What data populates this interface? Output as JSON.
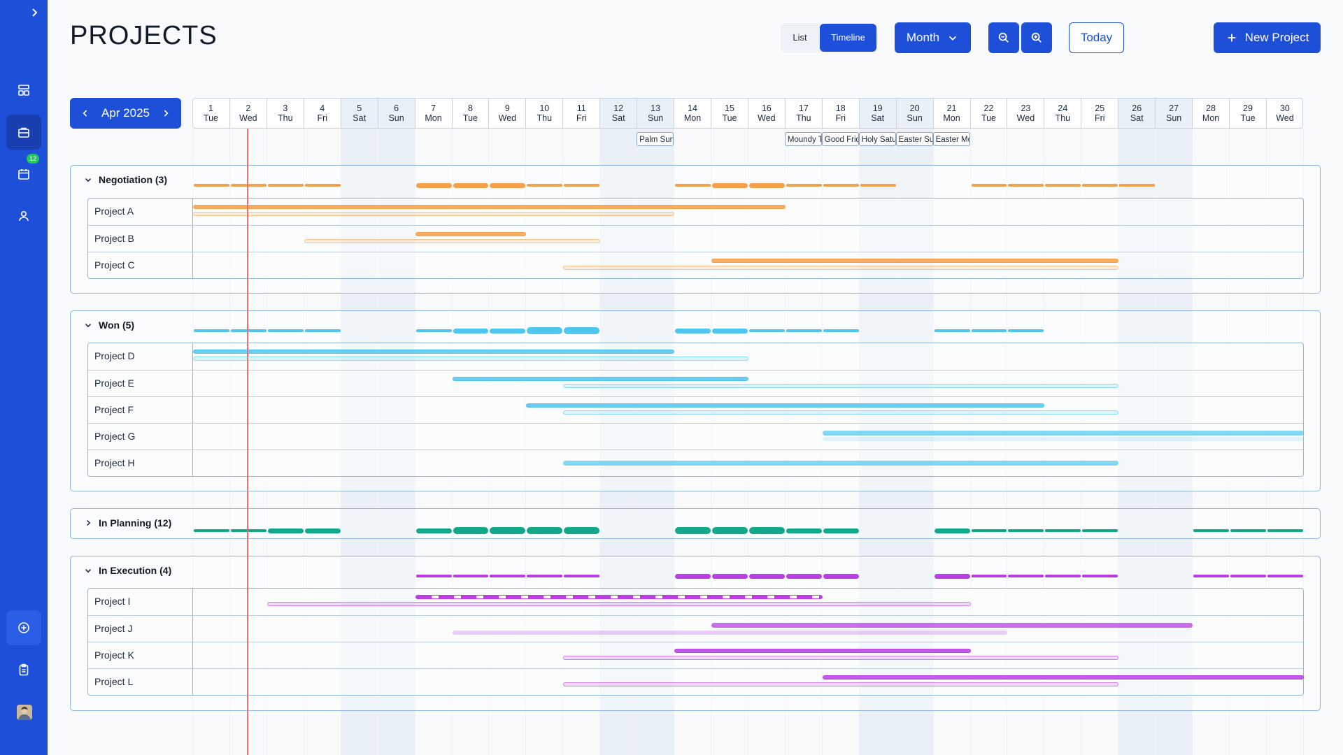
{
  "page_title": "PROJECTS",
  "view_toggle": {
    "list": "List",
    "timeline": "Timeline"
  },
  "period_select": "Month",
  "today_label": "Today",
  "new_project_label": "New Project",
  "month_nav": {
    "label": "Apr 2025"
  },
  "sidebar": {
    "calendar_badge": "12"
  },
  "days": [
    {
      "d": "1",
      "w": "Tue"
    },
    {
      "d": "2",
      "w": "Wed"
    },
    {
      "d": "3",
      "w": "Thu"
    },
    {
      "d": "4",
      "w": "Fri"
    },
    {
      "d": "5",
      "w": "Sat"
    },
    {
      "d": "6",
      "w": "Sun"
    },
    {
      "d": "7",
      "w": "Mon"
    },
    {
      "d": "8",
      "w": "Tue"
    },
    {
      "d": "9",
      "w": "Wed"
    },
    {
      "d": "10",
      "w": "Thu"
    },
    {
      "d": "11",
      "w": "Fri"
    },
    {
      "d": "12",
      "w": "Sat"
    },
    {
      "d": "13",
      "w": "Sun"
    },
    {
      "d": "14",
      "w": "Mon"
    },
    {
      "d": "15",
      "w": "Tue"
    },
    {
      "d": "16",
      "w": "Wed"
    },
    {
      "d": "17",
      "w": "Thu"
    },
    {
      "d": "18",
      "w": "Fri"
    },
    {
      "d": "19",
      "w": "Sat"
    },
    {
      "d": "20",
      "w": "Sun"
    },
    {
      "d": "21",
      "w": "Mon"
    },
    {
      "d": "22",
      "w": "Tue"
    },
    {
      "d": "23",
      "w": "Wed"
    },
    {
      "d": "24",
      "w": "Thu"
    },
    {
      "d": "25",
      "w": "Fri"
    },
    {
      "d": "26",
      "w": "Sat"
    },
    {
      "d": "27",
      "w": "Sun"
    },
    {
      "d": "28",
      "w": "Mon"
    },
    {
      "d": "29",
      "w": "Tue"
    },
    {
      "d": "30",
      "w": "Wed"
    }
  ],
  "weekend_days": [
    5,
    6,
    12,
    13,
    19,
    20,
    26,
    27
  ],
  "today_day": 2,
  "holidays": [
    {
      "day": 13,
      "label": "Palm Sunday"
    },
    {
      "day": 17,
      "label": "Moundy Thursday"
    },
    {
      "day": 18,
      "label": "Good Friday"
    },
    {
      "day": 19,
      "label": "Holy Saturday"
    },
    {
      "day": 20,
      "label": "Easter Sunday"
    },
    {
      "day": 21,
      "label": "Easter Monday"
    }
  ],
  "colors": {
    "negotiation": "#f5a04a",
    "won": "#4fc6ee",
    "planning": "#13a88a",
    "execution": "#b93ee6"
  },
  "groups": [
    {
      "name": "Negotiation (3)",
      "key": "negotiation",
      "expanded": true,
      "load": [
        1,
        1,
        1,
        1,
        0,
        0,
        2,
        2,
        2,
        1,
        1,
        0,
        0,
        1,
        2,
        2,
        1,
        1,
        1,
        0,
        0,
        1,
        1,
        1,
        1,
        1,
        0,
        0,
        0,
        0
      ],
      "projects": [
        {
          "name": "Project A",
          "main": [
            1,
            16
          ],
          "sub": [
            1,
            13
          ]
        },
        {
          "name": "Project B",
          "main": [
            7,
            9
          ],
          "sub": [
            4,
            11
          ]
        },
        {
          "name": "Project C",
          "main": [
            15,
            25
          ],
          "sub": [
            11,
            25
          ]
        }
      ]
    },
    {
      "name": "Won (5)",
      "key": "won",
      "expanded": true,
      "load": [
        1,
        1,
        1,
        1,
        0,
        0,
        1,
        2,
        2,
        3,
        3,
        0,
        0,
        2,
        2,
        1,
        1,
        1,
        0,
        0,
        1,
        1,
        1,
        0,
        0,
        0,
        0,
        0,
        0,
        0
      ],
      "projects": [
        {
          "name": "Project D",
          "main": [
            1,
            13
          ],
          "sub": [
            1,
            15
          ]
        },
        {
          "name": "Project E",
          "main": [
            8,
            15
          ],
          "sub": [
            11,
            25
          ]
        },
        {
          "name": "Project F",
          "main": [
            10,
            23
          ],
          "sub": [
            11,
            25
          ]
        },
        {
          "name": "Project G",
          "main": [
            18,
            30
          ],
          "sub": [
            18,
            30
          ],
          "solid": true
        },
        {
          "name": "Project H",
          "main": [
            11,
            25
          ],
          "solid": true
        }
      ]
    },
    {
      "name": "In Planning (12)",
      "key": "planning",
      "expanded": false,
      "load": [
        1,
        1,
        2,
        2,
        0,
        0,
        2,
        3,
        3,
        3,
        3,
        0,
        0,
        3,
        3,
        3,
        2,
        2,
        0,
        0,
        2,
        1,
        1,
        1,
        1,
        0,
        0,
        1,
        1,
        1
      ],
      "projects": []
    },
    {
      "name": "In Execution (4)",
      "key": "execution",
      "expanded": true,
      "load": [
        0,
        0,
        0,
        0,
        0,
        0,
        1,
        1,
        1,
        1,
        1,
        0,
        0,
        2,
        2,
        2,
        2,
        2,
        0,
        0,
        2,
        1,
        1,
        1,
        1,
        0,
        0,
        1,
        1,
        1
      ],
      "projects": [
        {
          "name": "Project I",
          "main": [
            7,
            17
          ],
          "sub": [
            3,
            21
          ],
          "striped": true
        },
        {
          "name": "Project J",
          "main": [
            15,
            27
          ],
          "sub": [
            8,
            22
          ],
          "solid": true
        },
        {
          "name": "Project K",
          "main": [
            14,
            21
          ],
          "sub": [
            11,
            25
          ]
        },
        {
          "name": "Project L",
          "main": [
            18,
            30
          ],
          "sub": [
            11,
            25
          ]
        }
      ]
    }
  ]
}
